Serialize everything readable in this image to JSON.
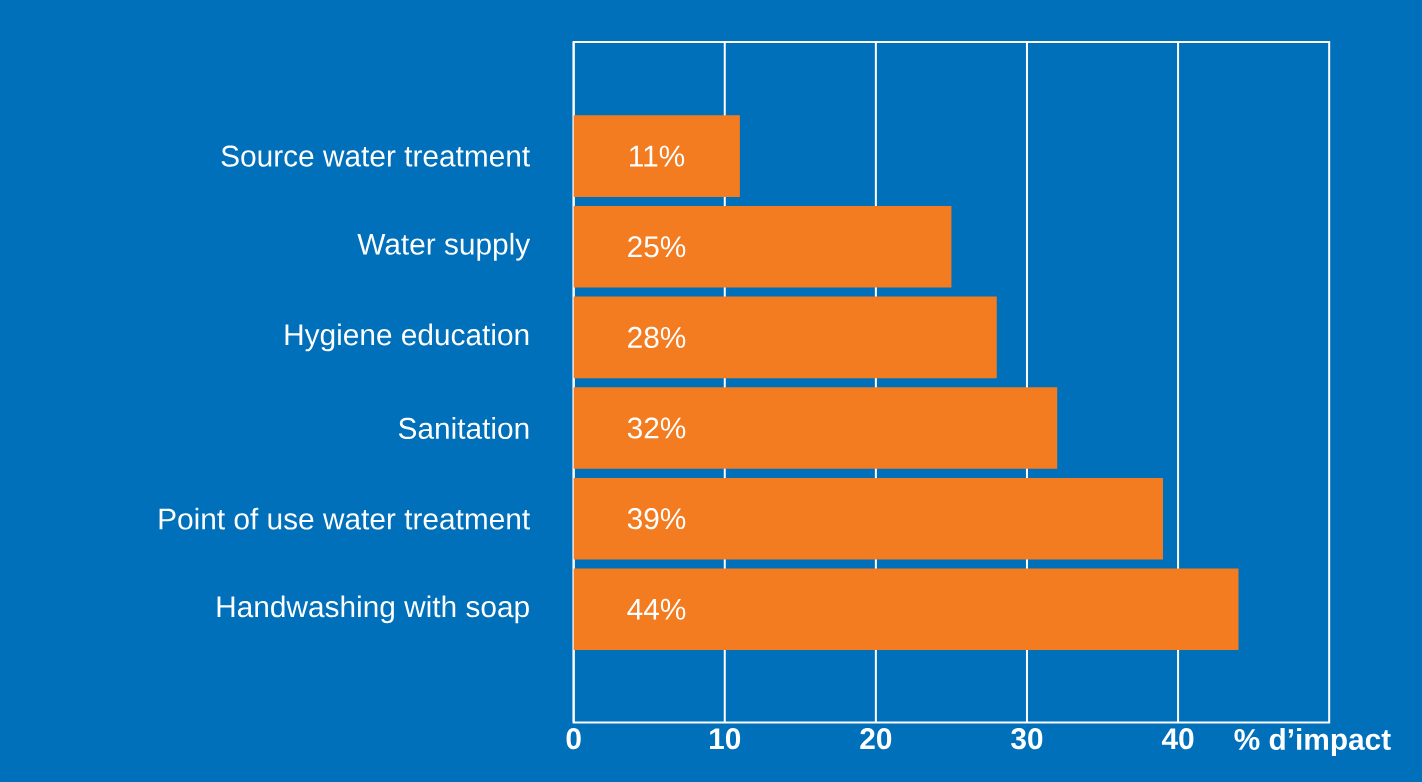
{
  "chart_data": {
    "type": "bar",
    "orientation": "horizontal",
    "xlabel": "% d’impact",
    "categories": [
      "Source water treatment",
      "Water supply",
      "Hygiene education",
      "Sanitation",
      "Point of use water treatment",
      "Handwashing with soap"
    ],
    "values": [
      11,
      25,
      28,
      32,
      39,
      44
    ],
    "value_labels": [
      "11%",
      "25%",
      "28%",
      "32%",
      "39%",
      "44%"
    ],
    "color": "#f47c20",
    "xlim": [
      0,
      50
    ],
    "xticks": [
      0,
      10,
      20,
      30,
      40
    ],
    "grid": "x"
  }
}
